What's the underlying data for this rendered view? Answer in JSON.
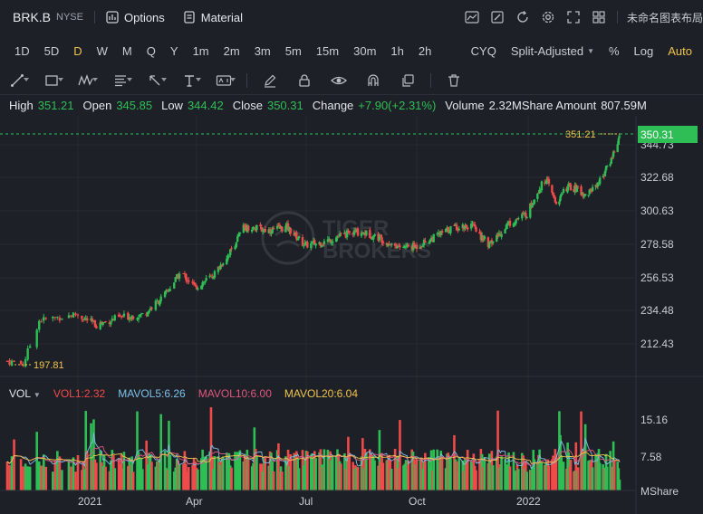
{
  "header": {
    "ticker": "BRK.B",
    "exchange": "NYSE",
    "options_label": "Options",
    "material_label": "Material",
    "layout_name": "未命名图表布局"
  },
  "periods": [
    "1D",
    "5D",
    "D",
    "W",
    "M",
    "Q",
    "Y",
    "1m",
    "2m",
    "3m",
    "5m",
    "15m",
    "30m",
    "1h",
    "2h"
  ],
  "active_period": "D",
  "period_right": {
    "cyq": "CYQ",
    "adjust": "Split-Adjusted",
    "percent": "%",
    "log": "Log",
    "auto": "Auto"
  },
  "tool_icons": [
    "line-tool-icon",
    "rectangle-tool-icon",
    "pattern-tool-icon",
    "fib-tool-icon",
    "arrow-tool-icon",
    "text-tool-icon",
    "annotation-tool-icon",
    "pen-icon",
    "lock-icon",
    "eye-icon",
    "magnet-icon",
    "duplicate-icon",
    "trash-icon"
  ],
  "ohlc": {
    "high_label": "High",
    "high": "351.21",
    "open_label": "Open",
    "open": "345.85",
    "low_label": "Low",
    "low": "344.42",
    "close_label": "Close",
    "close": "350.31",
    "change_label": "Change",
    "change": "+7.90(+2.31%)",
    "volume_label": "Volume",
    "volume": "2.32M",
    "amount_label": "Share Amount",
    "amount": "807.59M"
  },
  "price_axis": {
    "ticks": [
      "344.73",
      "322.68",
      "300.63",
      "278.58",
      "256.53",
      "234.48",
      "212.43"
    ],
    "current_price": "350.31",
    "high_marker": "351.21",
    "low_marker": "197.81"
  },
  "time_axis": [
    "2021",
    "Apr",
    "Jul",
    "Oct",
    "2022"
  ],
  "volume_panel": {
    "title": "VOL",
    "vol": "VOL1:2.32",
    "mavol5": "MAVOL5:6.26",
    "mavol10": "MAVOL10:6.00",
    "mavol20": "MAVOL20:6.04",
    "ticks": [
      "15.16",
      "7.58"
    ],
    "unit": "MShare"
  },
  "watermark": {
    "line1": "TIGER",
    "line2": "BROKERS"
  },
  "colors": {
    "up": "#2fbe55",
    "down": "#f04a4a",
    "accent": "#f0c24b",
    "mavol5": "#7cc0e8",
    "mavol10": "#e0567e",
    "mavol20": "#f0c24b"
  },
  "chart_data": {
    "type": "candlestick",
    "price_keypoints_close": [
      [
        "2020-12-01",
        201
      ],
      [
        "2020-12-08",
        199
      ],
      [
        "2020-12-15",
        228
      ],
      [
        "2020-12-31",
        232
      ],
      [
        "2021-01-15",
        225
      ],
      [
        "2021-02-01",
        230
      ],
      [
        "2021-02-20",
        232
      ],
      [
        "2021-03-08",
        245
      ],
      [
        "2021-03-20",
        260
      ],
      [
        "2021-03-31",
        250
      ],
      [
        "2021-04-15",
        258
      ],
      [
        "2021-04-30",
        275
      ],
      [
        "2021-05-10",
        290
      ],
      [
        "2021-05-31",
        288
      ],
      [
        "2021-06-15",
        290
      ],
      [
        "2021-06-30",
        278
      ],
      [
        "2021-07-15",
        280
      ],
      [
        "2021-08-01",
        285
      ],
      [
        "2021-08-15",
        287
      ],
      [
        "2021-08-31",
        283
      ],
      [
        "2021-09-15",
        277
      ],
      [
        "2021-09-30",
        277
      ],
      [
        "2021-10-15",
        283
      ],
      [
        "2021-10-31",
        290
      ],
      [
        "2021-11-15",
        291
      ],
      [
        "2021-11-30",
        278
      ],
      [
        "2021-12-15",
        292
      ],
      [
        "2021-12-31",
        299
      ],
      [
        "2022-01-10",
        314
      ],
      [
        "2022-01-18",
        322
      ],
      [
        "2022-01-28",
        306
      ],
      [
        "2022-02-08",
        317
      ],
      [
        "2022-02-18",
        315
      ],
      [
        "2022-02-25",
        311
      ],
      [
        "2022-03-10",
        320
      ],
      [
        "2022-03-20",
        332
      ],
      [
        "2022-03-30",
        350.31
      ]
    ],
    "volume_max_label": 15.16,
    "y_range": [
      195,
      353
    ]
  }
}
